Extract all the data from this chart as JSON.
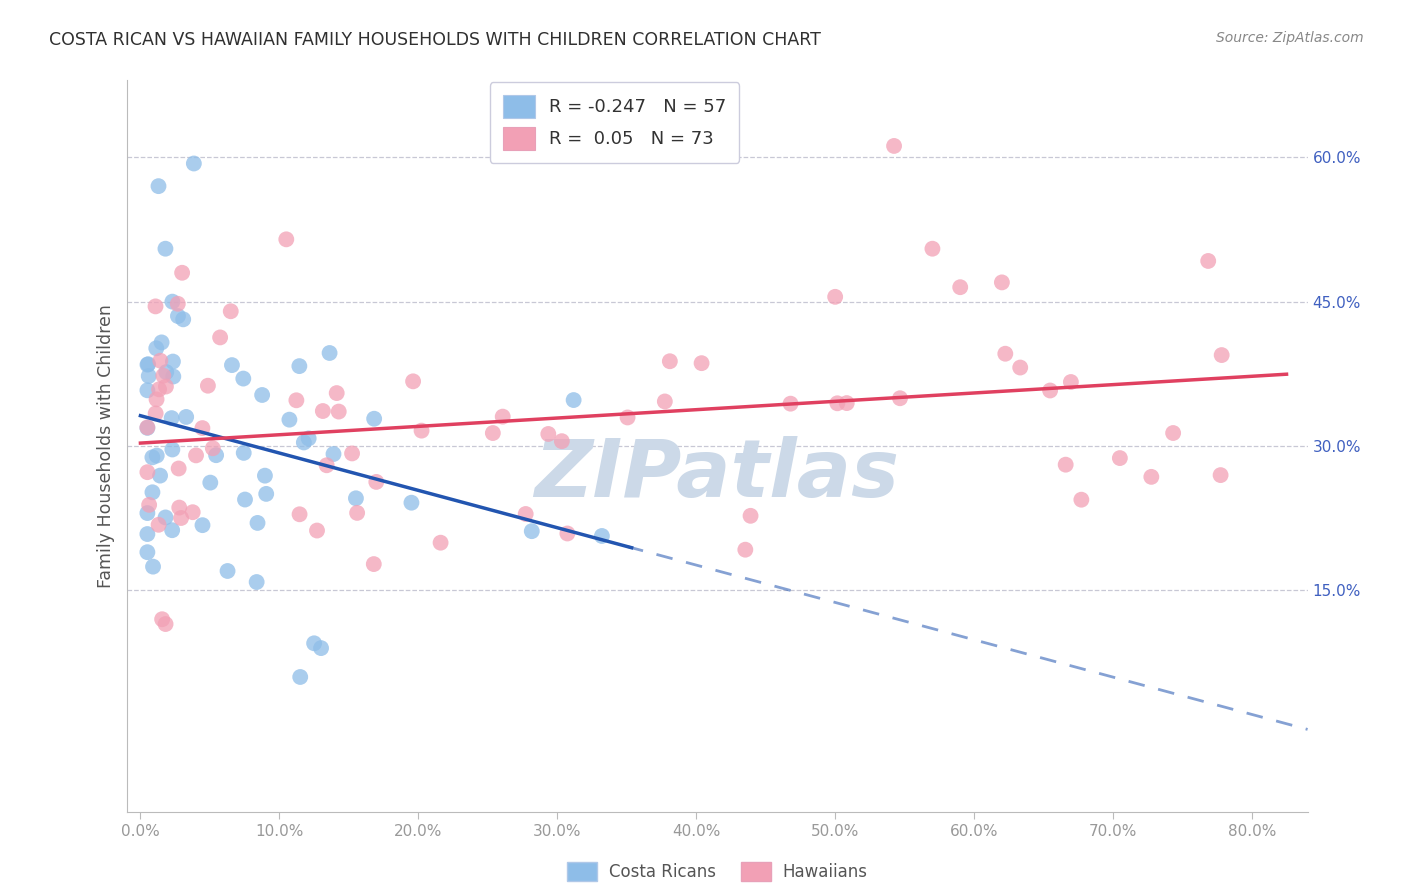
{
  "title": "COSTA RICAN VS HAWAIIAN FAMILY HOUSEHOLDS WITH CHILDREN CORRELATION CHART",
  "source": "Source: ZipAtlas.com",
  "ylabel": "Family Households with Children",
  "costa_rican_R": -0.247,
  "costa_rican_N": 57,
  "hawaiian_R": 0.05,
  "hawaiian_N": 73,
  "costa_rican_color": "#8ebde8",
  "hawaiian_color": "#f2a0b5",
  "trend_cr_color": "#2255b0",
  "trend_hw_color": "#e04060",
  "watermark_color": "#ccd9e8",
  "bg_color": "#ffffff",
  "grid_color": "#c8c8d5",
  "right_label_color": "#4060c0",
  "title_color": "#303030",
  "source_color": "#888888",
  "axis_color": "#999999",
  "ylabel_color": "#555555",
  "xlim": [
    -1,
    84
  ],
  "ylim": [
    -8,
    68
  ],
  "xticks": [
    0,
    10,
    20,
    30,
    40,
    50,
    60,
    70,
    80
  ],
  "yticks": [
    15,
    30,
    45,
    60
  ]
}
